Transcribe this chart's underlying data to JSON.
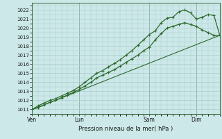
{
  "bg_color": "#cce8e8",
  "grid_color": "#aacccc",
  "line_color": "#2d6a2d",
  "marker_color": "#2d6a2d",
  "ylabel_ticks": [
    1011,
    1012,
    1013,
    1014,
    1015,
    1016,
    1017,
    1018,
    1019,
    1020,
    1021,
    1022
  ],
  "ylim": [
    1010.5,
    1022.8
  ],
  "xlabel": "Pression niveau de la mer( hPa )",
  "day_labels": [
    "Ven",
    "Lun",
    "Sam",
    "Dim"
  ],
  "day_positions": [
    0.0,
    0.25,
    0.625,
    0.875
  ],
  "line1_x": [
    0.0,
    0.031,
    0.063,
    0.094,
    0.125,
    0.156,
    0.188,
    0.219,
    0.25,
    0.281,
    0.313,
    0.344,
    0.375,
    0.406,
    0.438,
    0.469,
    0.5,
    0.531,
    0.563,
    0.594,
    0.625,
    0.656,
    0.688,
    0.719,
    0.75,
    0.781,
    0.813,
    0.844,
    0.875,
    0.906,
    0.938,
    0.969,
    1.0
  ],
  "line1_y": [
    1011.0,
    1011.4,
    1011.7,
    1012.0,
    1012.2,
    1012.5,
    1012.8,
    1013.1,
    1013.5,
    1014.0,
    1014.5,
    1015.0,
    1015.3,
    1015.7,
    1016.1,
    1016.5,
    1017.0,
    1017.5,
    1018.1,
    1018.7,
    1019.3,
    1019.7,
    1020.6,
    1021.1,
    1021.2,
    1021.8,
    1022.0,
    1021.7,
    1021.0,
    1021.2,
    1021.5,
    1021.4,
    1019.2
  ],
  "line2_x": [
    0.0,
    0.031,
    0.063,
    0.094,
    0.125,
    0.156,
    0.188,
    0.219,
    0.25,
    0.281,
    0.313,
    0.344,
    0.375,
    0.406,
    0.438,
    0.469,
    0.5,
    0.531,
    0.563,
    0.594,
    0.625,
    0.656,
    0.688,
    0.719,
    0.75,
    0.781,
    0.813,
    0.844,
    0.875,
    0.906,
    0.938,
    0.969,
    1.0
  ],
  "line2_y": [
    1011.0,
    1011.2,
    1011.5,
    1011.8,
    1012.0,
    1012.3,
    1012.6,
    1012.9,
    1013.2,
    1013.6,
    1014.0,
    1014.5,
    1014.8,
    1015.1,
    1015.4,
    1015.8,
    1016.2,
    1016.6,
    1017.0,
    1017.5,
    1017.9,
    1018.7,
    1019.4,
    1020.0,
    1020.2,
    1020.4,
    1020.6,
    1020.4,
    1020.2,
    1019.8,
    1019.5,
    1019.2,
    1019.2
  ],
  "line3_x": [
    0.0,
    1.0
  ],
  "line3_y": [
    1011.0,
    1019.2
  ],
  "xlim": [
    0.0,
    1.0
  ]
}
